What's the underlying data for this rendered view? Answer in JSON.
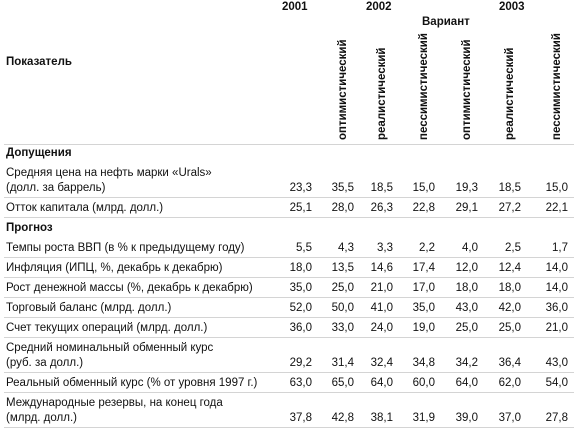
{
  "header": {
    "indicator": "Показатель",
    "variant": "Вариант",
    "years": [
      "2001",
      "2002",
      "2003"
    ],
    "scenarios": [
      "оптимистический",
      "реалистический",
      "пессимистический",
      "оптимистический",
      "реалистический",
      "пессимистический"
    ]
  },
  "sections": [
    {
      "title": "Допущения",
      "rows": [
        {
          "label": [
            "Средняя цена на нефть марки «Urals»",
            "(долл. за баррель)"
          ],
          "values": [
            "23,3",
            "35,5",
            "18,5",
            "15,0",
            "19,3",
            "18,5",
            "15,0"
          ]
        },
        {
          "label": [
            "Отток капитала (млрд. долл.)"
          ],
          "values": [
            "25,1",
            "28,0",
            "26,3",
            "22,8",
            "29,1",
            "27,2",
            "22,1"
          ]
        }
      ]
    },
    {
      "title": "Прогноз",
      "rows": [
        {
          "label": [
            "Темпы роста ВВП (в % к предыдущему году)"
          ],
          "values": [
            "5,5",
            "4,3",
            "3,3",
            "2,2",
            "4,0",
            "2,5",
            "1,7"
          ]
        },
        {
          "label": [
            "Инфляция (ИПЦ, %, декабрь к декабрю)"
          ],
          "values": [
            "18,0",
            "13,5",
            "14,6",
            "17,4",
            "12,0",
            "12,4",
            "14,0"
          ]
        },
        {
          "label": [
            "Рост денежной массы (%, декабрь к декабрю)"
          ],
          "values": [
            "35,0",
            "25,0",
            "21,0",
            "17,0",
            "18,0",
            "18,0",
            "14,0"
          ]
        },
        {
          "label": [
            "Торговый баланс (млрд. долл.)"
          ],
          "values": [
            "52,0",
            "50,0",
            "41,0",
            "35,0",
            "43,0",
            "42,0",
            "36,0"
          ]
        },
        {
          "label": [
            "Счет текущих операций (млрд. долл.)"
          ],
          "values": [
            "36,0",
            "33,0",
            "24,0",
            "19,0",
            "25,0",
            "25,0",
            "21,0"
          ]
        },
        {
          "label": [
            "Средний номинальный обменный курс",
            "(руб. за долл.)"
          ],
          "values": [
            "29,2",
            "31,4",
            "32,4",
            "34,8",
            "34,2",
            "36,4",
            "43,0"
          ]
        },
        {
          "label": [
            "Реальный обменный курс (% от уровня 1997 г.)"
          ],
          "values": [
            "63,0",
            "65,0",
            "64,0",
            "60,0",
            "64,0",
            "62,0",
            "54,0"
          ]
        },
        {
          "label": [
            "Международные резервы, на конец года",
            "(млрд. долл.)"
          ],
          "values": [
            "37,8",
            "42,8",
            "38,1",
            "31,9",
            "39,0",
            "37,0",
            "27,8"
          ]
        }
      ]
    }
  ]
}
